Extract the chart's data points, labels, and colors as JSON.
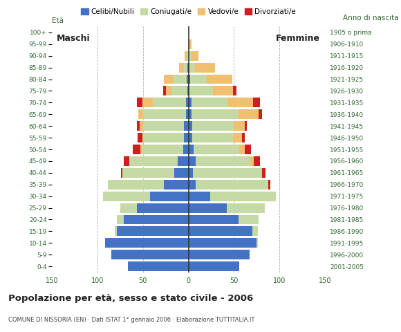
{
  "age_groups": [
    "0-4",
    "5-9",
    "10-14",
    "15-19",
    "20-24",
    "25-29",
    "30-34",
    "35-39",
    "40-44",
    "45-49",
    "50-54",
    "55-59",
    "60-64",
    "65-69",
    "70-74",
    "75-79",
    "80-84",
    "85-89",
    "90-94",
    "95-99",
    "100+"
  ],
  "birth_years": [
    "2001-2005",
    "1996-2000",
    "1991-1995",
    "1986-1990",
    "1981-1985",
    "1976-1980",
    "1971-1975",
    "1966-1970",
    "1961-1965",
    "1956-1960",
    "1951-1955",
    "1946-1950",
    "1941-1945",
    "1936-1940",
    "1931-1935",
    "1926-1930",
    "1921-1925",
    "1916-1920",
    "1911-1915",
    "1906-1910",
    "1905 o prima"
  ],
  "males": {
    "celibi": [
      67,
      85,
      92,
      79,
      71,
      57,
      42,
      27,
      16,
      12,
      6,
      5,
      5,
      3,
      3,
      1,
      2,
      1,
      0,
      0,
      0
    ],
    "coniugati": [
      0,
      0,
      0,
      2,
      8,
      18,
      52,
      62,
      57,
      53,
      45,
      45,
      45,
      47,
      36,
      18,
      15,
      4,
      2,
      0,
      0
    ],
    "vedovi": [
      0,
      0,
      0,
      0,
      0,
      0,
      0,
      0,
      0,
      0,
      2,
      1,
      4,
      5,
      12,
      6,
      10,
      5,
      2,
      0,
      0
    ],
    "divorziati": [
      0,
      0,
      0,
      0,
      0,
      0,
      0,
      0,
      1,
      6,
      8,
      5,
      3,
      0,
      6,
      3,
      0,
      0,
      0,
      0,
      0
    ]
  },
  "females": {
    "nubili": [
      56,
      67,
      75,
      70,
      55,
      42,
      24,
      8,
      5,
      8,
      6,
      4,
      4,
      3,
      3,
      1,
      2,
      1,
      0,
      0,
      0
    ],
    "coniugate": [
      0,
      0,
      1,
      6,
      22,
      42,
      72,
      80,
      75,
      60,
      50,
      45,
      46,
      52,
      40,
      26,
      18,
      6,
      3,
      1,
      0
    ],
    "vedove": [
      0,
      0,
      0,
      0,
      0,
      0,
      0,
      0,
      1,
      4,
      6,
      10,
      12,
      22,
      28,
      22,
      28,
      22,
      8,
      2,
      0
    ],
    "divorziate": [
      0,
      0,
      0,
      0,
      0,
      0,
      0,
      2,
      4,
      7,
      7,
      3,
      2,
      4,
      8,
      4,
      0,
      0,
      0,
      0,
      0
    ]
  },
  "colors": {
    "celibi": "#4472c4",
    "coniugati": "#c5d9a5",
    "vedovi": "#f0c070",
    "divorziati": "#cc2020"
  },
  "xlim": 150,
  "title": "Popolazione per età, sesso e stato civile - 2006",
  "subtitle": "COMUNE DI NISSORIA (EN) · Dati ISTAT 1° gennaio 2006 · Elaborazione TUTTITALIA.IT",
  "ylabel_left": "Età",
  "ylabel_right": "Anno di nascita",
  "label_maschi": "Maschi",
  "label_femmine": "Femmine",
  "legend_labels": [
    "Celibi/Nubili",
    "Coniugati/e",
    "Vedovi/e",
    "Divorziati/e"
  ],
  "bg_color": "#ffffff",
  "grid_color": "#999999",
  "title_color": "#222222",
  "subtitle_color": "#444444",
  "axis_label_color": "#336633",
  "tick_color": "#336633"
}
